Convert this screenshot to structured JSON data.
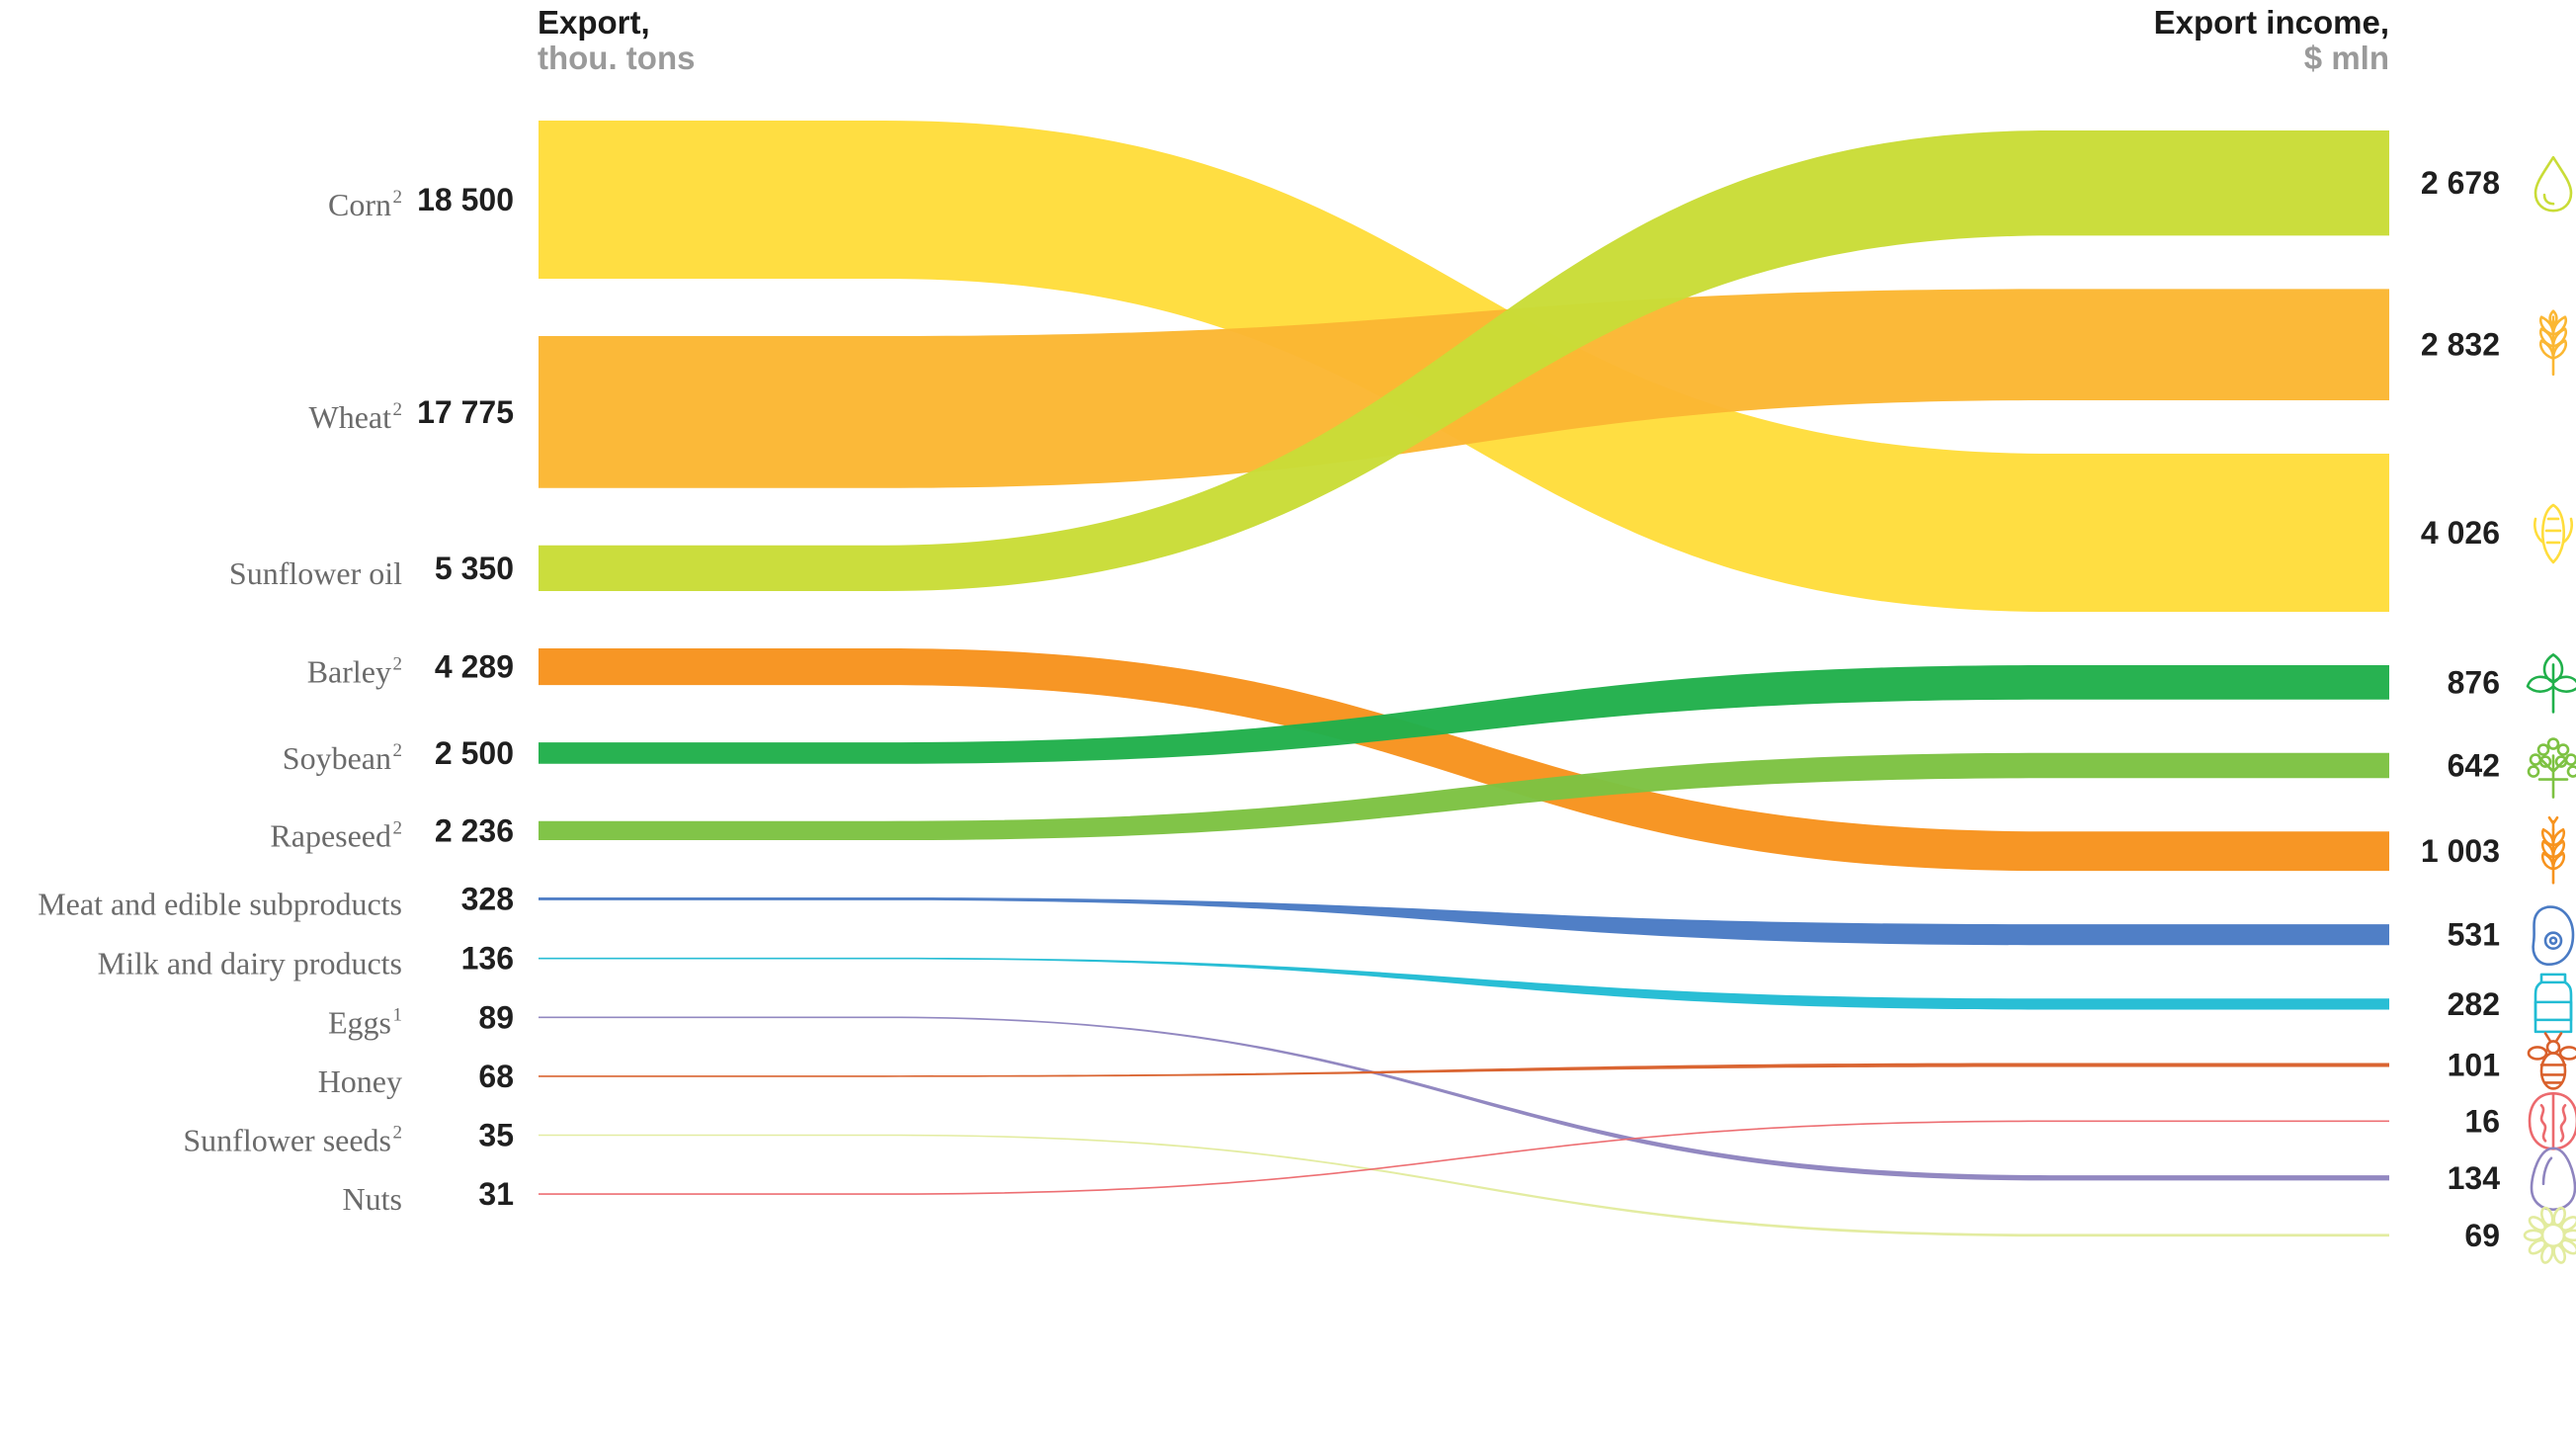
{
  "chart_data": {
    "type": "sankey",
    "left_header": {
      "title": "Export,",
      "unit": "thou. tons"
    },
    "right_header": {
      "title": "Export income,",
      "unit": "$ mln"
    },
    "items": [
      {
        "name": "Corn",
        "sup": "2",
        "export_label": "18 500",
        "income_label": "4 026",
        "export": 18500,
        "income": 4026,
        "color": "#FFDD3C",
        "icon": "drop-icon"
      },
      {
        "name": "Wheat",
        "sup": "2",
        "export_label": "17 775",
        "income_label": "2 832",
        "export": 17775,
        "income": 2832,
        "color": "#FBB733",
        "icon": "wheat-ear-icon"
      },
      {
        "name": "Sunflower oil",
        "sup": "",
        "export_label": "5 350",
        "income_label": "2 678",
        "export": 5350,
        "income": 2678,
        "color": "#C9DC37",
        "icon": "corn-cob-icon"
      },
      {
        "name": "Barley",
        "sup": "2",
        "export_label": "4 289",
        "income_label": "1 003",
        "export": 4289,
        "income": 1003,
        "color": "#F7931E",
        "icon": "soybean-plant-icon"
      },
      {
        "name": "Soybean",
        "sup": "2",
        "export_label": "2 500",
        "income_label": "876",
        "export": 2500,
        "income": 876,
        "color": "#21B04B",
        "icon": "rapeseed-plant-icon"
      },
      {
        "name": "Rapeseed",
        "sup": "2",
        "export_label": "2 236",
        "income_label": "642",
        "export": 2236,
        "income": 642,
        "color": "#7DC242",
        "icon": "barley-ear-icon"
      },
      {
        "name": "Meat and edible subproducts",
        "sup": "",
        "export_label": "328",
        "income_label": "531",
        "export": 328,
        "income": 531,
        "color": "#4A7BC4",
        "icon": "meat-cut-icon"
      },
      {
        "name": "Milk and dairy products",
        "sup": "",
        "export_label": "136",
        "income_label": "282",
        "export": 136,
        "income": 282,
        "color": "#22BCD4",
        "icon": "milk-jar-icon"
      },
      {
        "name": "Eggs",
        "sup": "1",
        "export_label": "89",
        "income_label": "134",
        "export": 89,
        "income": 134,
        "color": "#8E84BF",
        "icon": "bee-icon"
      },
      {
        "name": "Honey",
        "sup": "",
        "export_label": "68",
        "income_label": "101",
        "export": 68,
        "income": 101,
        "color": "#D9602B",
        "icon": "walnut-icon"
      },
      {
        "name": "Sunflower seeds",
        "sup": "2",
        "export_label": "35",
        "income_label": "69",
        "export": 35,
        "income": 69,
        "color": "#E2EB9E",
        "icon": "egg-icon"
      },
      {
        "name": "Nuts",
        "sup": "",
        "export_label": "31",
        "income_label": "16",
        "export": 31,
        "income": 16,
        "color": "#EC6A6E",
        "icon": "sunflower-icon"
      }
    ],
    "right_order": [
      "Sunflower oil",
      "Wheat",
      "Corn",
      "Soybean",
      "Rapeseed",
      "Barley",
      "Meat and edible subproducts",
      "Milk and dairy products",
      "Honey",
      "Nuts",
      "Eggs",
      "Sunflower seeds"
    ]
  }
}
